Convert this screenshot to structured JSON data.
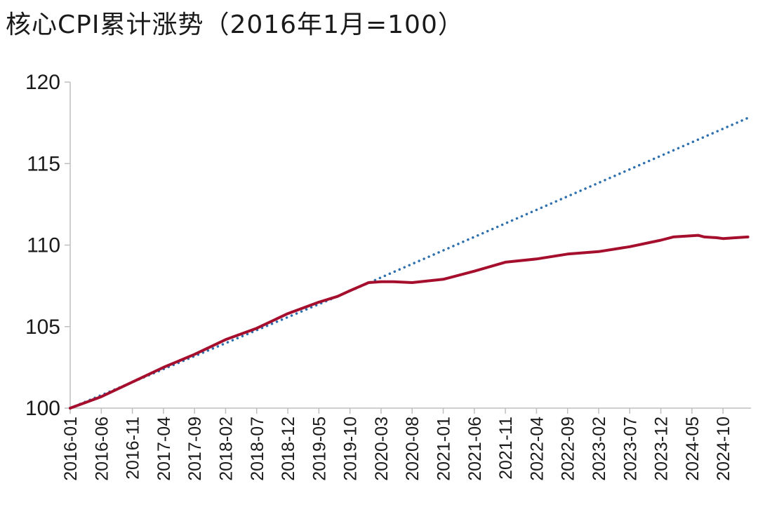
{
  "chart_data": {
    "type": "line",
    "title": "核心CPI累计涨势（2016年1月=100）",
    "xlabel": "",
    "ylabel": "",
    "ylim": [
      100,
      120
    ],
    "yticks": [
      100,
      105,
      110,
      115,
      120
    ],
    "x_tick_labels": [
      "2016-01",
      "2016-06",
      "2016-11",
      "2017-04",
      "2017-09",
      "2018-02",
      "2018-07",
      "2018-12",
      "2019-05",
      "2019-10",
      "2020-03",
      "2020-08",
      "2021-01",
      "2021-06",
      "2021-11",
      "2022-04",
      "2022-09",
      "2023-02",
      "2023-07",
      "2023-12",
      "2024-05",
      "2024-10"
    ],
    "x_start": "2016-01",
    "x_end": "2025-02",
    "grid": false,
    "legend": "none",
    "series": [
      {
        "color": "#a50f2d",
        "style": "solid",
        "points": [
          [
            "2016-01",
            100.0
          ],
          [
            "2016-06",
            100.7
          ],
          [
            "2016-11",
            101.6
          ],
          [
            "2017-04",
            102.5
          ],
          [
            "2017-09",
            103.3
          ],
          [
            "2018-02",
            104.2
          ],
          [
            "2018-07",
            104.9
          ],
          [
            "2018-12",
            105.8
          ],
          [
            "2019-05",
            106.5
          ],
          [
            "2019-08",
            106.85
          ],
          [
            "2019-10",
            107.2
          ],
          [
            "2020-01",
            107.7
          ],
          [
            "2020-03",
            107.75
          ],
          [
            "2020-05",
            107.75
          ],
          [
            "2020-08",
            107.7
          ],
          [
            "2021-01",
            107.9
          ],
          [
            "2021-06",
            108.4
          ],
          [
            "2021-11",
            108.95
          ],
          [
            "2022-04",
            109.15
          ],
          [
            "2022-09",
            109.45
          ],
          [
            "2023-02",
            109.6
          ],
          [
            "2023-07",
            109.9
          ],
          [
            "2023-12",
            110.3
          ],
          [
            "2024-02",
            110.5
          ],
          [
            "2024-06",
            110.6
          ],
          [
            "2024-07",
            110.5
          ],
          [
            "2024-09",
            110.45
          ],
          [
            "2024-10",
            110.4
          ],
          [
            "2024-12",
            110.45
          ],
          [
            "2025-02",
            110.5
          ]
        ]
      },
      {
        "color": "#2e6fae",
        "style": "dotted",
        "points": [
          [
            "2016-01",
            100.0
          ],
          [
            "2019-08",
            106.85
          ],
          [
            "2025-02",
            117.8
          ]
        ]
      }
    ]
  }
}
